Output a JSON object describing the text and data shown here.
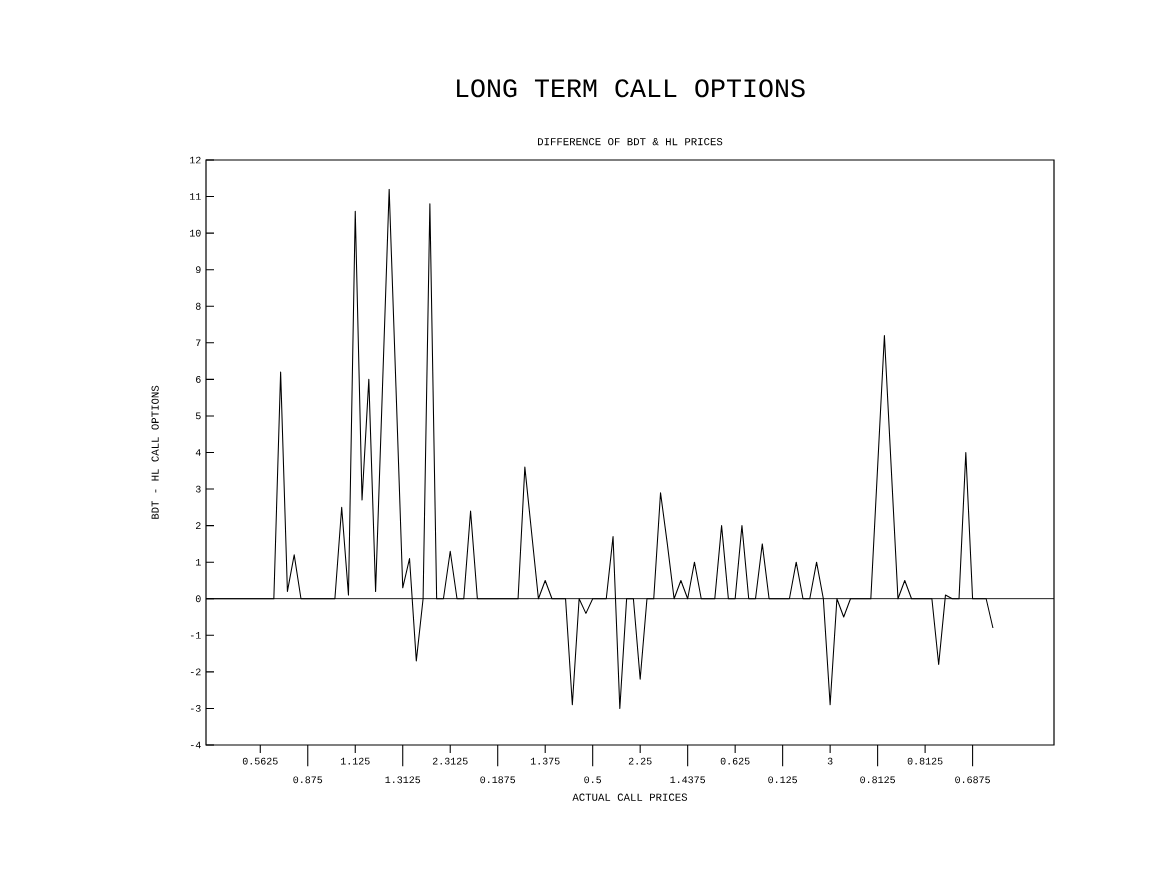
{
  "chart_data": {
    "type": "line",
    "title": "LONG TERM CALL OPTIONS",
    "subtitle": "DIFFERENCE OF BDT & HL PRICES",
    "xlabel": "ACTUAL CALL PRICES",
    "ylabel": "BDT - HL CALL OPTIONS",
    "ylim": [
      -4,
      12
    ],
    "yticks": [
      -4,
      -3,
      -2,
      -1,
      0,
      1,
      2,
      3,
      4,
      5,
      6,
      7,
      8,
      9,
      10,
      11,
      12
    ],
    "categories": [
      null,
      null,
      null,
      null,
      null,
      null,
      null,
      null,
      "0.5625",
      null,
      null,
      null,
      null,
      null,
      null,
      "0.875",
      null,
      null,
      null,
      null,
      null,
      null,
      "1.125",
      null,
      null,
      null,
      null,
      null,
      null,
      "1.3125",
      null,
      null,
      null,
      null,
      null,
      null,
      "2.3125",
      null,
      null,
      null,
      null,
      null,
      null,
      "0.1875",
      null,
      null,
      null,
      null,
      null,
      null,
      "1.375",
      null,
      null,
      null,
      null,
      null,
      null,
      "0.5",
      null,
      null,
      null,
      null,
      null,
      null,
      "2.25",
      null,
      null,
      null,
      null,
      null,
      null,
      "1.4375",
      null,
      null,
      null,
      null,
      null,
      null,
      "0.625",
      null,
      null,
      null,
      null,
      null,
      null,
      "0.125",
      null,
      null,
      null,
      null,
      null,
      null,
      "3",
      null,
      null,
      null,
      null,
      null,
      null,
      "0.8125",
      null,
      null,
      null,
      null,
      null,
      null,
      "0.8125",
      null,
      null,
      null,
      null,
      null,
      null,
      "0.6875",
      null,
      null,
      null,
      null,
      null,
      null,
      null,
      null,
      null,
      null,
      null,
      null
    ],
    "ref_lines": [
      {
        "axis": "y",
        "value": 0
      }
    ],
    "series": [
      {
        "color": "#000000",
        "values": [
          0,
          0,
          0,
          0,
          0,
          0,
          0,
          0,
          0,
          0,
          0,
          6.2,
          0.2,
          1.2,
          0,
          0,
          0,
          0,
          0,
          0,
          2.5,
          0.1,
          10.6,
          2.7,
          6.0,
          0.2,
          5.7,
          11.2,
          5.8,
          0.3,
          1.1,
          -1.7,
          0,
          10.8,
          0,
          0,
          1.3,
          0,
          0,
          2.4,
          0,
          0,
          0,
          0,
          0,
          0,
          0,
          3.6,
          1.8,
          0,
          0.5,
          0,
          0,
          0,
          -2.9,
          0,
          -0.4,
          0,
          0,
          0,
          1.7,
          -3.0,
          0,
          0,
          -2.2,
          0,
          0,
          2.9,
          1.5,
          0,
          0.5,
          0,
          1.0,
          0,
          0,
          0,
          2.0,
          0,
          0,
          2.0,
          0,
          0,
          1.5,
          0,
          0,
          0,
          0,
          1.0,
          0,
          0,
          1.0,
          0,
          -2.9,
          0,
          -0.5,
          0,
          0,
          0,
          0,
          3.6,
          7.2,
          3.6,
          0,
          0.5,
          0,
          0,
          0,
          0,
          -1.8,
          0.1,
          0,
          0,
          4.0,
          0,
          0,
          0,
          -0.8,
          null,
          null,
          null,
          null,
          null,
          null,
          null,
          null,
          null
        ]
      }
    ]
  }
}
